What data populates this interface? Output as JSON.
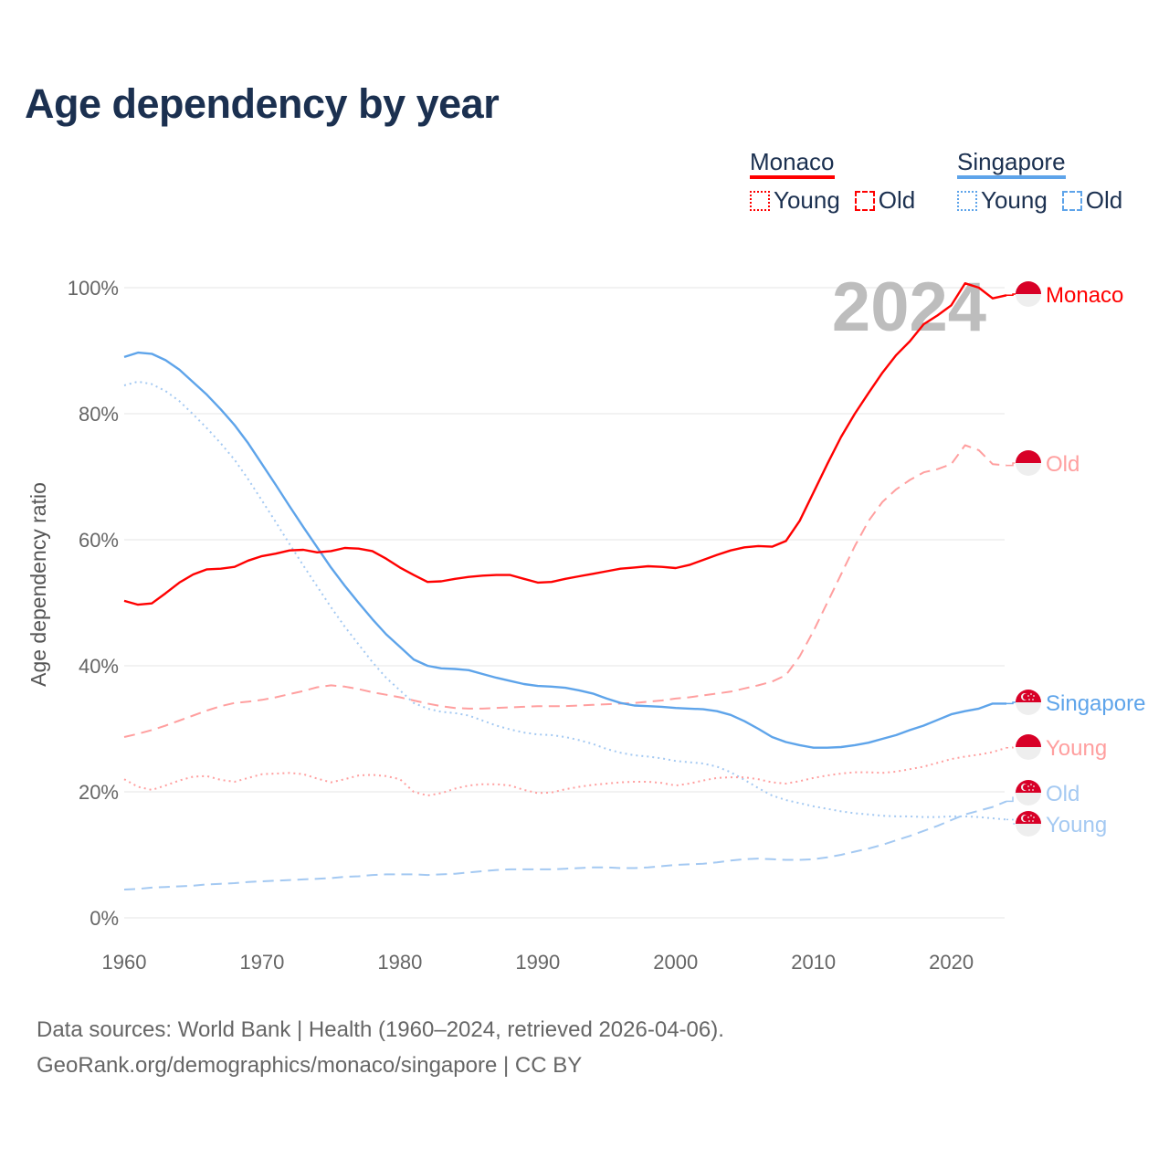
{
  "chart_data": {
    "type": "line",
    "title": "Age dependency by year",
    "xlabel": "",
    "ylabel": "Age dependency ratio",
    "xlim": [
      1960,
      2024
    ],
    "ylim": [
      0,
      100
    ],
    "x_ticks": [
      "1960",
      "1970",
      "1980",
      "1990",
      "2000",
      "2010",
      "2020"
    ],
    "y_ticks": [
      "0%",
      "20%",
      "40%",
      "60%",
      "80%",
      "100%"
    ],
    "grid": true,
    "year_watermark": "2024",
    "x_start": 1960,
    "legend": {
      "placement": "top-right",
      "groups": [
        {
          "name": "Monaco",
          "color": "#ff0000",
          "items": [
            "Young",
            "Old"
          ]
        },
        {
          "name": "Singapore",
          "color": "#5ea4ea",
          "items": [
            "Young",
            "Old"
          ]
        }
      ]
    },
    "series": [
      {
        "name": "Monaco",
        "country": "Monaco",
        "kind": "total",
        "color": "#ff0000",
        "dash": "",
        "values": [
          50.3,
          49.7,
          49.9,
          51.5,
          53.2,
          54.5,
          55.3,
          55.4,
          55.7,
          56.7,
          57.4,
          57.8,
          58.3,
          58.4,
          58.0,
          58.2,
          58.7,
          58.6,
          58.2,
          57.0,
          55.6,
          54.4,
          53.3,
          53.4,
          53.8,
          54.1,
          54.3,
          54.4,
          54.4,
          53.8,
          53.2,
          53.3,
          53.8,
          54.2,
          54.6,
          55.0,
          55.4,
          55.6,
          55.8,
          55.7,
          55.5,
          56.0,
          56.8,
          57.6,
          58.3,
          58.8,
          59.0,
          58.9,
          59.8,
          63.0,
          67.5,
          72.0,
          76.3,
          80.0,
          83.3,
          86.5,
          89.3,
          91.5,
          94.2,
          95.6,
          97.2,
          100.7,
          100.0,
          98.3,
          98.8
        ]
      },
      {
        "name": "Old",
        "country": "Monaco",
        "kind": "old",
        "color": "#ff9f9f",
        "dash": "12 7",
        "values": [
          28.7,
          29.2,
          29.8,
          30.5,
          31.3,
          32.1,
          32.9,
          33.6,
          34.1,
          34.3,
          34.6,
          35.0,
          35.5,
          36.0,
          36.6,
          36.9,
          36.7,
          36.3,
          35.8,
          35.4,
          35.0,
          34.5,
          34.0,
          33.6,
          33.3,
          33.2,
          33.2,
          33.3,
          33.4,
          33.5,
          33.6,
          33.6,
          33.6,
          33.7,
          33.8,
          33.9,
          34.0,
          34.1,
          34.3,
          34.5,
          34.8,
          35.0,
          35.3,
          35.6,
          35.9,
          36.4,
          36.9,
          37.5,
          38.5,
          41.5,
          45.5,
          50.0,
          54.5,
          59.0,
          63.0,
          66.0,
          68.0,
          69.5,
          70.7,
          71.2,
          72.0,
          75.0,
          74.2,
          72.0,
          71.8
        ]
      },
      {
        "name": "Singapore",
        "country": "Singapore",
        "kind": "total",
        "color": "#5ea4ea",
        "dash": "",
        "values": [
          89.0,
          89.7,
          89.5,
          88.5,
          87.0,
          85.0,
          83.0,
          80.7,
          78.2,
          75.3,
          72.0,
          68.7,
          65.3,
          62.0,
          58.8,
          55.6,
          52.7,
          50.0,
          47.4,
          45.0,
          43.0,
          41.0,
          40.0,
          39.6,
          39.5,
          39.3,
          38.7,
          38.1,
          37.6,
          37.1,
          36.8,
          36.7,
          36.5,
          36.1,
          35.6,
          34.8,
          34.1,
          33.7,
          33.6,
          33.5,
          33.3,
          33.2,
          33.1,
          32.8,
          32.2,
          31.2,
          30.0,
          28.7,
          27.9,
          27.4,
          27.0,
          27.0,
          27.1,
          27.4,
          27.8,
          28.4,
          29.0,
          29.8,
          30.5,
          31.4,
          32.3,
          32.8,
          33.2,
          34.0,
          34.0
        ]
      },
      {
        "name": "Young",
        "country": "Monaco",
        "kind": "young",
        "color": "#ff9f9f",
        "dash": "2 4",
        "values": [
          22.0,
          20.8,
          20.3,
          21.0,
          21.8,
          22.4,
          22.5,
          21.9,
          21.6,
          22.2,
          22.8,
          22.9,
          23.0,
          22.8,
          22.1,
          21.5,
          22.0,
          22.6,
          22.7,
          22.5,
          22.0,
          20.0,
          19.4,
          19.8,
          20.5,
          21.0,
          21.2,
          21.2,
          21.0,
          20.3,
          19.8,
          19.9,
          20.4,
          20.8,
          21.1,
          21.3,
          21.5,
          21.6,
          21.6,
          21.4,
          21.0,
          21.3,
          21.8,
          22.2,
          22.3,
          22.3,
          22.0,
          21.5,
          21.3,
          21.7,
          22.2,
          22.6,
          22.9,
          23.1,
          23.1,
          23.0,
          23.2,
          23.6,
          24.0,
          24.6,
          25.2,
          25.6,
          25.9,
          26.3,
          27.0
        ]
      },
      {
        "name": "Old",
        "country": "Singapore",
        "kind": "old",
        "color": "#a4c9f2",
        "dash": "12 7",
        "values": [
          4.5,
          4.6,
          4.8,
          4.9,
          5.0,
          5.1,
          5.3,
          5.4,
          5.5,
          5.7,
          5.8,
          5.9,
          6.0,
          6.1,
          6.2,
          6.3,
          6.5,
          6.6,
          6.8,
          6.9,
          6.9,
          6.9,
          6.8,
          6.9,
          7.0,
          7.2,
          7.4,
          7.6,
          7.7,
          7.7,
          7.7,
          7.7,
          7.8,
          7.9,
          8.0,
          8.0,
          7.9,
          7.9,
          8.0,
          8.2,
          8.4,
          8.5,
          8.6,
          8.8,
          9.1,
          9.3,
          9.4,
          9.3,
          9.2,
          9.2,
          9.3,
          9.6,
          10.0,
          10.5,
          11.0,
          11.6,
          12.3,
          13.0,
          13.8,
          14.6,
          15.5,
          16.4,
          17.0,
          17.6,
          18.5
        ]
      },
      {
        "name": "Young",
        "country": "Singapore",
        "kind": "young",
        "color": "#a4c9f2",
        "dash": "2 4",
        "values": [
          84.5,
          85.1,
          84.7,
          83.6,
          82.0,
          79.9,
          77.7,
          75.3,
          72.7,
          69.6,
          66.2,
          62.8,
          59.3,
          55.9,
          52.6,
          49.3,
          46.2,
          43.4,
          40.6,
          38.1,
          36.1,
          34.1,
          33.2,
          32.7,
          32.5,
          32.1,
          31.3,
          30.5,
          29.9,
          29.4,
          29.1,
          29.0,
          28.7,
          28.2,
          27.6,
          26.8,
          26.2,
          25.8,
          25.6,
          25.3,
          24.9,
          24.7,
          24.5,
          24.0,
          23.1,
          21.9,
          20.6,
          19.4,
          18.7,
          18.2,
          17.7,
          17.3,
          16.9,
          16.6,
          16.4,
          16.2,
          16.1,
          16.1,
          16.0,
          16.0,
          16.1,
          16.1,
          16.0,
          15.8,
          15.6
        ]
      }
    ]
  },
  "footer": {
    "line1": "Data sources: World Bank | Health (1960–2024, retrieved 2026-04-06).",
    "line2": "GeoRank.org/demographics/monaco/singapore | CC BY"
  }
}
